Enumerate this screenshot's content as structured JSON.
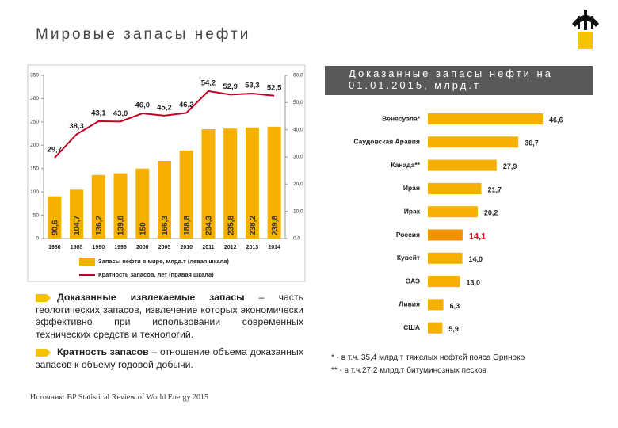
{
  "header": {
    "title": "Мировые запасы нефти"
  },
  "chart_data": [
    {
      "type": "bar-line",
      "categories": [
        "1980",
        "1985",
        "1990",
        "1995",
        "2000",
        "2005",
        "2010",
        "2011",
        "2012",
        "2013",
        "2014"
      ],
      "series": [
        {
          "name": "Запасы нефти в мире, млрд.т (левая шкала)",
          "color": "#f5b000",
          "type": "bar",
          "values": [
            90.6,
            104.7,
            136.2,
            139.8,
            150,
            166.3,
            188.8,
            234.3,
            235.8,
            238.2,
            239.8
          ],
          "value_labels": [
            "90,6",
            "104,7",
            "136,2",
            "139,8",
            "150",
            "166,3",
            "188,8",
            "234,3",
            "235,8",
            "238,2",
            "239,8"
          ]
        },
        {
          "name": "Кратность запасов, лет (правая шкала)",
          "color": "#c00026",
          "type": "line",
          "axis": "y2",
          "values": [
            29.7,
            38.3,
            43.1,
            43.0,
            46.0,
            45.2,
            46.2,
            54.2,
            52.9,
            53.3,
            52.5
          ],
          "value_labels": [
            "29,7",
            "38,3",
            "43,1",
            "43,0",
            "46,0",
            "45,2",
            "46,2",
            "54,2",
            "52,9",
            "53,3",
            "52,5"
          ]
        }
      ],
      "ylim": [
        0,
        350
      ],
      "yticks": [
        0,
        50,
        100,
        150,
        200,
        250,
        300,
        350
      ],
      "y2lim": [
        0,
        60
      ],
      "y2ticks": [
        {
          "value": 0,
          "label": "0,0"
        },
        {
          "value": 10,
          "label": "10,0"
        },
        {
          "value": 20,
          "label": "20,0"
        },
        {
          "value": 30,
          "label": "30,0"
        },
        {
          "value": 40,
          "label": "40,0"
        },
        {
          "value": 50,
          "label": "50,0"
        },
        {
          "value": 60,
          "label": "60,0"
        }
      ]
    },
    {
      "type": "hbar",
      "title": "Доказанные запасы нефти на 01.01.2015, млрд.т",
      "categories": [
        "Венесуэла*",
        "Саудовская Аравия",
        "Канада**",
        "Иран",
        "Ирак",
        "Россия",
        "Кувейт",
        "ОАЭ",
        "Ливия",
        "США"
      ],
      "values": [
        46.6,
        36.7,
        27.9,
        21.7,
        20.2,
        14.1,
        14.0,
        13.0,
        6.3,
        5.9
      ],
      "value_labels": [
        "46,6",
        "36,7",
        "27,9",
        "21,7",
        "20,2",
        "14,1",
        "14,0",
        "13,0",
        "6,3",
        "5,9"
      ],
      "colors": [
        "#f5b000",
        "#f5b000",
        "#f5b000",
        "#f5b000",
        "#f5b000",
        "#f39200",
        "#f5b000",
        "#f5b000",
        "#f5b000",
        "#f5b000"
      ],
      "value_label_colors": [
        "#222222",
        "#222222",
        "#222222",
        "#222222",
        "#222222",
        "#e30613",
        "#222222",
        "#222222",
        "#222222",
        "#222222"
      ]
    }
  ],
  "definitions": [
    {
      "term": "Доказанные извлекаемые запасы",
      "text": " – часть геологических запасов, извлечение которых экономически эффективно при использовании современных технических средств и технологий."
    },
    {
      "term": "Кратность запасов",
      "text": " – отношение объема доказанных запасов к объему годовой добычи."
    }
  ],
  "footnotes": [
    "* - в т.ч. 35,4 млрд.т тяжелых нефтей пояса Ориноко",
    "** - в т.ч.27,2 млрд.т битуминозных песков"
  ],
  "source": "Источник: BP Statistical Review of World Energy 2015"
}
